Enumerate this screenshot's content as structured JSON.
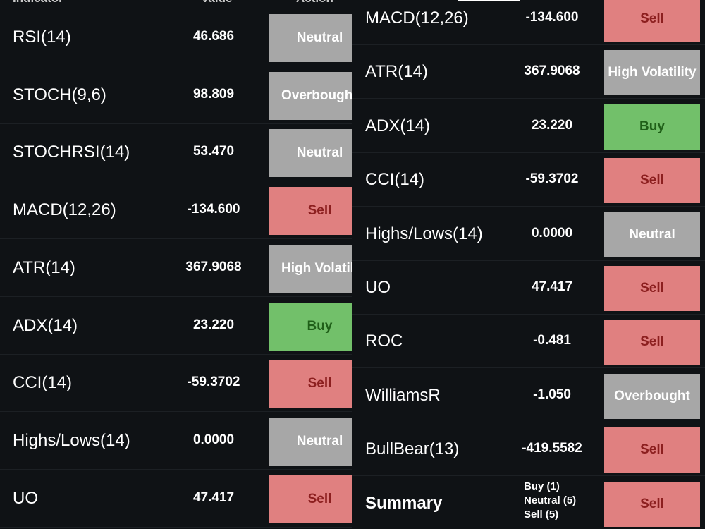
{
  "header": {
    "col_indicator": "Indicator",
    "col_value": "Value",
    "col_action": "Action"
  },
  "left_rows": [
    {
      "name": "RSI(14)",
      "value": "46.686",
      "action": "Neutral",
      "kind": "neutral"
    },
    {
      "name": "STOCH(9,6)",
      "value": "98.809",
      "action": "Overbought",
      "kind": "ob"
    },
    {
      "name": "STOCHRSI(14)",
      "value": "53.470",
      "action": "Neutral",
      "kind": "neutral"
    },
    {
      "name": "MACD(12,26)",
      "value": "-134.600",
      "action": "Sell",
      "kind": "sell"
    },
    {
      "name": "ATR(14)",
      "value": "367.9068",
      "action": "High Volatility",
      "kind": "hv"
    },
    {
      "name": "ADX(14)",
      "value": "23.220",
      "action": "Buy",
      "kind": "buy"
    },
    {
      "name": "CCI(14)",
      "value": "-59.3702",
      "action": "Sell",
      "kind": "sell"
    },
    {
      "name": "Highs/Lows(14)",
      "value": "0.0000",
      "action": "Neutral",
      "kind": "neutral"
    },
    {
      "name": "UO",
      "value": "47.417",
      "action": "Sell",
      "kind": "sell"
    }
  ],
  "right_rows": [
    {
      "name": "MACD(12,26)",
      "value": "-134.600",
      "action": "Sell",
      "kind": "sell"
    },
    {
      "name": "ATR(14)",
      "value": "367.9068",
      "action": "High Volatility",
      "kind": "hv"
    },
    {
      "name": "ADX(14)",
      "value": "23.220",
      "action": "Buy",
      "kind": "buy"
    },
    {
      "name": "CCI(14)",
      "value": "-59.3702",
      "action": "Sell",
      "kind": "sell"
    },
    {
      "name": "Highs/Lows(14)",
      "value": "0.0000",
      "action": "Neutral",
      "kind": "neutral"
    },
    {
      "name": "UO",
      "value": "47.417",
      "action": "Sell",
      "kind": "sell"
    },
    {
      "name": "ROC",
      "value": "-0.481",
      "action": "Sell",
      "kind": "sell"
    },
    {
      "name": "WilliamsR",
      "value": "-1.050",
      "action": "Overbought",
      "kind": "ob"
    },
    {
      "name": "BullBear(13)",
      "value": "-419.5582",
      "action": "Sell",
      "kind": "sell"
    }
  ],
  "summary": {
    "label": "Summary",
    "buy": "Buy (1)",
    "neutral": "Neutral (5)",
    "sell": "Sell (5)",
    "action": "Sell"
  },
  "colors": {
    "sell_bg": "#e08080",
    "neutral_bg": "#a7a7a7",
    "buy_bg": "#72c06a",
    "background": "#0f1215"
  }
}
